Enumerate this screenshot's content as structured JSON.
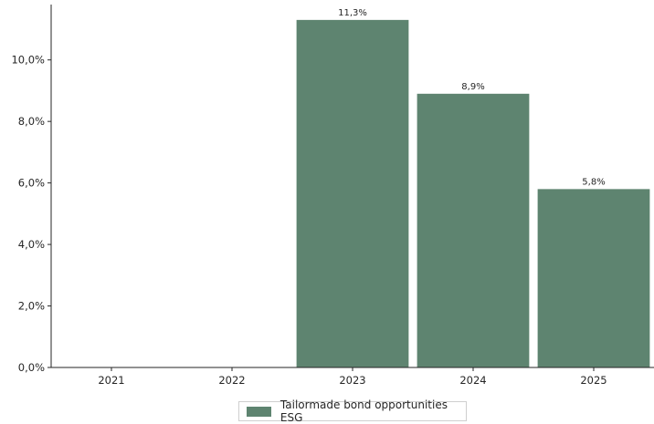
{
  "chart_data": {
    "type": "bar",
    "categories": [
      "2021",
      "2022",
      "2023",
      "2024",
      "2025"
    ],
    "series": [
      {
        "name": "Tailormade bond opportunities ESG",
        "values": [
          null,
          null,
          11.3,
          8.9,
          5.8
        ],
        "data_labels": [
          "",
          "",
          "11,3%",
          "8,9%",
          "5,8%"
        ],
        "color": "#5e8470"
      }
    ],
    "y_ticks": [
      0,
      2,
      4,
      6,
      8,
      10
    ],
    "y_tick_labels": [
      "0,0%",
      "2,0%",
      "4,0%",
      "6,0%",
      "8,0%",
      "10,0%"
    ],
    "ylim": [
      0,
      11.8
    ],
    "grid": false,
    "legend_position": "bottom-center",
    "title": "",
    "xlabel": "",
    "ylabel": ""
  }
}
